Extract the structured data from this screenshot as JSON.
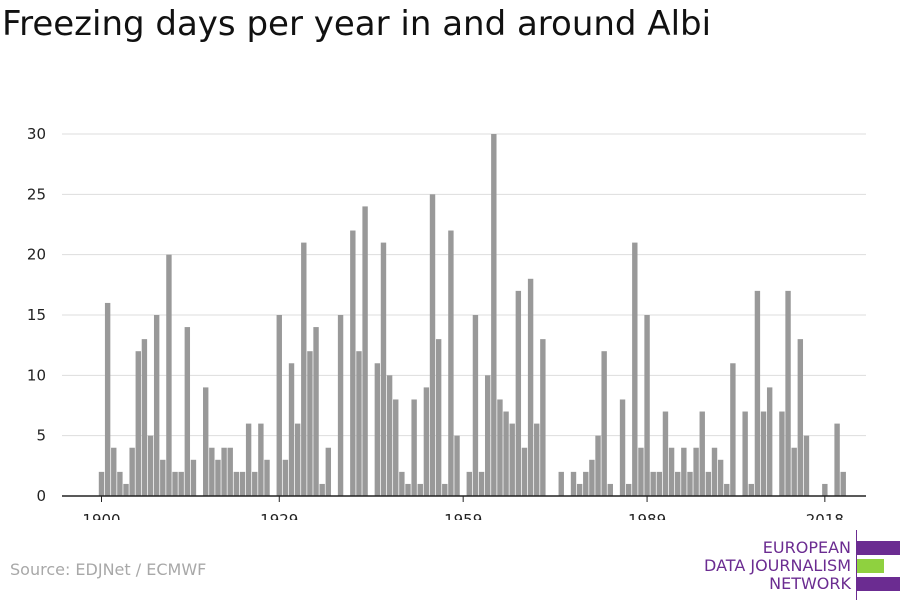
{
  "chart_data": {
    "type": "bar",
    "title": "Freezing days per year in and around Albi",
    "xlabel": "",
    "ylabel": "",
    "x_start": 1900,
    "x_end": 2019,
    "xticks": [
      1900,
      1929,
      1959,
      1989,
      2018
    ],
    "yticks": [
      0,
      5,
      10,
      15,
      20,
      25,
      30
    ],
    "ylim": [
      0,
      30
    ],
    "grid": true,
    "bar_color": "#999999",
    "values": [
      2,
      16,
      4,
      2,
      1,
      4,
      12,
      13,
      5,
      15,
      3,
      20,
      2,
      2,
      14,
      3,
      0,
      9,
      4,
      3,
      4,
      4,
      2,
      2,
      6,
      2,
      6,
      3,
      0,
      15,
      3,
      11,
      6,
      21,
      12,
      14,
      1,
      4,
      0,
      15,
      0,
      22,
      12,
      24,
      0,
      11,
      21,
      10,
      8,
      2,
      1,
      8,
      1,
      9,
      25,
      13,
      1,
      22,
      5,
      0,
      2,
      15,
      2,
      10,
      30,
      8,
      7,
      6,
      17,
      4,
      18,
      6,
      13,
      0,
      0,
      2,
      0,
      2,
      1,
      2,
      3,
      5,
      12,
      1,
      0,
      8,
      1,
      21,
      4,
      15,
      2,
      2,
      7,
      4,
      2,
      4,
      2,
      4,
      7,
      2,
      4,
      3,
      1,
      11,
      0,
      7,
      1,
      17,
      7,
      9,
      0,
      7,
      17,
      4,
      13,
      5,
      0,
      0,
      1,
      0,
      6,
      2
    ]
  },
  "source": "Source: EDJNet / ECMWF",
  "logo": {
    "line1": "EUROPEAN",
    "line2": "DATA JOURNALISM",
    "line3": "NETWORK",
    "purple": "#6b2c91",
    "green": "#8fd13f"
  }
}
